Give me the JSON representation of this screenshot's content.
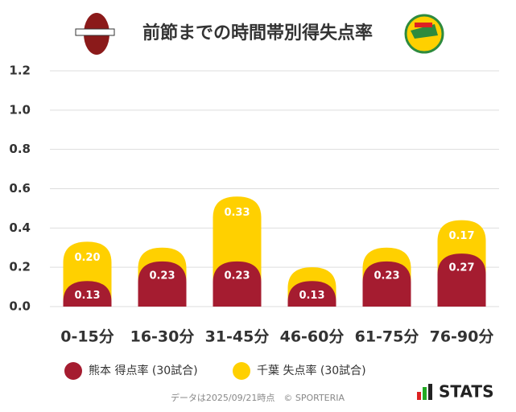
{
  "chart_data": {
    "type": "stacked-bar",
    "title": "前節までの時間帯別得失点率",
    "categories": [
      "0-15分",
      "16-30分",
      "31-45分",
      "46-60分",
      "61-75分",
      "76-90分"
    ],
    "series": [
      {
        "name": "熊本 得点率 (30試合)",
        "color": "#a51c30",
        "values": [
          0.13,
          0.23,
          0.23,
          0.13,
          0.23,
          0.27
        ],
        "value_labels": [
          "0.13",
          "0.23",
          "0.23",
          "0.13",
          "0.23",
          "0.27"
        ]
      },
      {
        "name": "千葉 失点率 (30試合)",
        "color": "#ffd000",
        "values": [
          0.2,
          0.07,
          0.33,
          0.07,
          0.07,
          0.17
        ],
        "value_labels": [
          "0.20",
          null,
          "0.33",
          null,
          null,
          "0.17"
        ]
      }
    ],
    "ylim": [
      0,
      1.2
    ],
    "yticks": [
      {
        "value": 0,
        "label": "0.0"
      },
      0.2,
      0.4,
      0.6,
      0.8,
      {
        "value": 1,
        "label": "1.0"
      },
      1.2
    ],
    "grid": true,
    "footer": "データは2025/09/21時点　© SPORTERIA",
    "brand": "STATS"
  }
}
